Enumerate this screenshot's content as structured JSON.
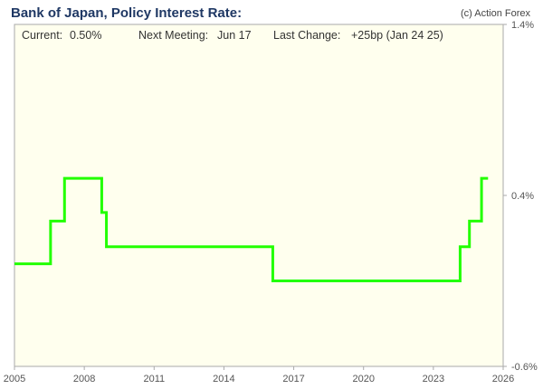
{
  "header": {
    "title": "Bank of Japan, Policy Interest Rate:",
    "copyright": "(c) Action Forex"
  },
  "stats": {
    "current_label": "Current:",
    "current_value": "0.50%",
    "next_label": "Next Meeting:",
    "next_value": "Jun 17",
    "change_label": "Last Change:",
    "change_value": "+25bp (Jan 24 25)"
  },
  "colors": {
    "plot_background": "#ffffee",
    "line": "#22ff00",
    "axis": "#aaaaaa"
  },
  "chart_data": {
    "type": "line",
    "title": "Bank of Japan, Policy Interest Rate:",
    "xlabel": "",
    "ylabel": "",
    "x_ticks": [
      "2005",
      "2008",
      "2011",
      "2014",
      "2017",
      "2020",
      "2023",
      "2026"
    ],
    "y_ticks": [
      "1.4%",
      "0.4%",
      "-0.6%"
    ],
    "xlim": [
      2005.0,
      2026.0
    ],
    "ylim": [
      -0.6,
      1.4
    ],
    "grid": false,
    "step": true,
    "series": [
      {
        "name": "",
        "x": [
          2005.0,
          2006.55,
          2007.15,
          2008.75,
          2008.95,
          2016.1,
          2024.15,
          2024.55,
          2025.07,
          2025.35
        ],
        "y": [
          0.0,
          0.25,
          0.5,
          0.3,
          0.1,
          -0.1,
          0.1,
          0.25,
          0.5,
          0.5
        ]
      }
    ]
  }
}
